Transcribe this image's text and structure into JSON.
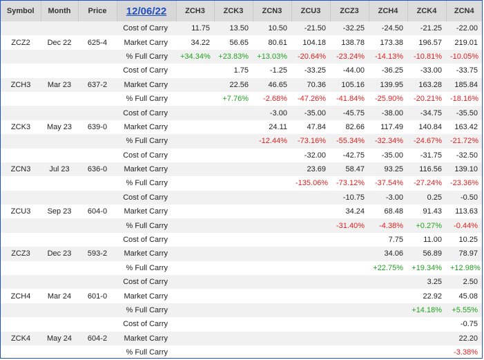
{
  "header": {
    "symbol": "Symbol",
    "month": "Month",
    "price": "Price",
    "date": "12/06/22",
    "cols": [
      "ZCH3",
      "ZCK3",
      "ZCN3",
      "ZCU3",
      "ZCZ3",
      "ZCH4",
      "ZCK4",
      "ZCN4"
    ]
  },
  "colors": {
    "positive": "#1fa31f",
    "negative": "#e02020",
    "accent": "#1f4fc4"
  },
  "groups": [
    {
      "symbol": "ZCZ2",
      "month": "Dec 22",
      "price": "625-4",
      "rows": [
        {
          "label": "Cost of Carry",
          "values": [
            "11.75",
            "13.50",
            "10.50",
            "-21.50",
            "-32.25",
            "-24.50",
            "-21.25",
            "-22.00"
          ]
        },
        {
          "label": "Market Carry",
          "values": [
            "34.22",
            "56.65",
            "80.61",
            "104.18",
            "138.78",
            "173.38",
            "196.57",
            "219.01"
          ]
        },
        {
          "label": "% Full Carry",
          "values": [
            "+34.34%",
            "+23.83%",
            "+13.03%",
            "-20.64%",
            "-23.24%",
            "-14.13%",
            "-10.81%",
            "-10.05%"
          ]
        }
      ]
    },
    {
      "symbol": "ZCH3",
      "month": "Mar 23",
      "price": "637-2",
      "rows": [
        {
          "label": "Cost of Carry",
          "values": [
            "",
            "1.75",
            "-1.25",
            "-33.25",
            "-44.00",
            "-36.25",
            "-33.00",
            "-33.75"
          ]
        },
        {
          "label": "Market Carry",
          "values": [
            "",
            "22.56",
            "46.65",
            "70.36",
            "105.16",
            "139.95",
            "163.28",
            "185.84"
          ]
        },
        {
          "label": "% Full Carry",
          "values": [
            "",
            "+7.76%",
            "-2.68%",
            "-47.26%",
            "-41.84%",
            "-25.90%",
            "-20.21%",
            "-18.16%"
          ]
        }
      ]
    },
    {
      "symbol": "ZCK3",
      "month": "May 23",
      "price": "639-0",
      "rows": [
        {
          "label": "Cost of Carry",
          "values": [
            "",
            "",
            "-3.00",
            "-35.00",
            "-45.75",
            "-38.00",
            "-34.75",
            "-35.50"
          ]
        },
        {
          "label": "Market Carry",
          "values": [
            "",
            "",
            "24.11",
            "47.84",
            "82.66",
            "117.49",
            "140.84",
            "163.42"
          ]
        },
        {
          "label": "% Full Carry",
          "values": [
            "",
            "",
            "-12.44%",
            "-73.16%",
            "-55.34%",
            "-32.34%",
            "-24.67%",
            "-21.72%"
          ]
        }
      ]
    },
    {
      "symbol": "ZCN3",
      "month": "Jul 23",
      "price": "636-0",
      "rows": [
        {
          "label": "Cost of Carry",
          "values": [
            "",
            "",
            "",
            "-32.00",
            "-42.75",
            "-35.00",
            "-31.75",
            "-32.50"
          ]
        },
        {
          "label": "Market Carry",
          "values": [
            "",
            "",
            "",
            "23.69",
            "58.47",
            "93.25",
            "116.56",
            "139.10"
          ]
        },
        {
          "label": "% Full Carry",
          "values": [
            "",
            "",
            "",
            "-135.06%",
            "-73.12%",
            "-37.54%",
            "-27.24%",
            "-23.36%"
          ]
        }
      ]
    },
    {
      "symbol": "ZCU3",
      "month": "Sep 23",
      "price": "604-0",
      "rows": [
        {
          "label": "Cost of Carry",
          "values": [
            "",
            "",
            "",
            "",
            "-10.75",
            "-3.00",
            "0.25",
            "-0.50"
          ]
        },
        {
          "label": "Market Carry",
          "values": [
            "",
            "",
            "",
            "",
            "34.24",
            "68.48",
            "91.43",
            "113.63"
          ]
        },
        {
          "label": "% Full Carry",
          "values": [
            "",
            "",
            "",
            "",
            "-31.40%",
            "-4.38%",
            "+0.27%",
            "-0.44%"
          ]
        }
      ]
    },
    {
      "symbol": "ZCZ3",
      "month": "Dec 23",
      "price": "593-2",
      "rows": [
        {
          "label": "Cost of Carry",
          "values": [
            "",
            "",
            "",
            "",
            "",
            "7.75",
            "11.00",
            "10.25"
          ]
        },
        {
          "label": "Market Carry",
          "values": [
            "",
            "",
            "",
            "",
            "",
            "34.06",
            "56.89",
            "78.97"
          ]
        },
        {
          "label": "% Full Carry",
          "values": [
            "",
            "",
            "",
            "",
            "",
            "+22.75%",
            "+19.34%",
            "+12.98%"
          ]
        }
      ]
    },
    {
      "symbol": "ZCH4",
      "month": "Mar 24",
      "price": "601-0",
      "rows": [
        {
          "label": "Cost of Carry",
          "values": [
            "",
            "",
            "",
            "",
            "",
            "",
            "3.25",
            "2.50"
          ]
        },
        {
          "label": "Market Carry",
          "values": [
            "",
            "",
            "",
            "",
            "",
            "",
            "22.92",
            "45.08"
          ]
        },
        {
          "label": "% Full Carry",
          "values": [
            "",
            "",
            "",
            "",
            "",
            "",
            "+14.18%",
            "+5.55%"
          ]
        }
      ]
    },
    {
      "symbol": "ZCK4",
      "month": "May 24",
      "price": "604-2",
      "rows": [
        {
          "label": "Cost of Carry",
          "values": [
            "",
            "",
            "",
            "",
            "",
            "",
            "",
            "-0.75"
          ]
        },
        {
          "label": "Market Carry",
          "values": [
            "",
            "",
            "",
            "",
            "",
            "",
            "",
            "22.20"
          ]
        },
        {
          "label": "% Full Carry",
          "values": [
            "",
            "",
            "",
            "",
            "",
            "",
            "",
            "-3.38%"
          ]
        }
      ]
    }
  ]
}
